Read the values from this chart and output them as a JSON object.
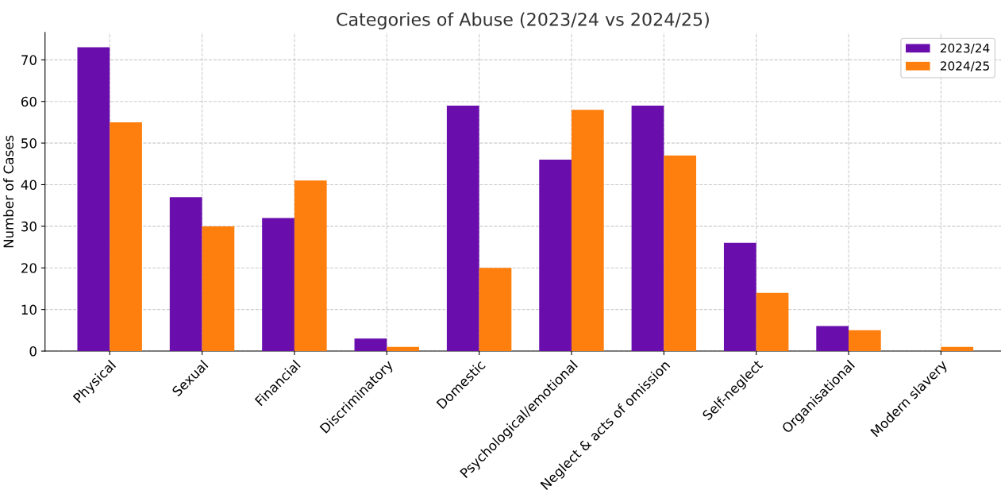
{
  "chart_data": {
    "type": "bar",
    "title": "Categories of Abuse (2023/24 vs 2024/25)",
    "ylabel": "Number of Cases",
    "categories": [
      "Physical",
      "Sexual",
      "Financial",
      "Discriminatory",
      "Domestic",
      "Psychological/emotional",
      "Neglect & acts of omission",
      "Self-neglect",
      "Organisational",
      "Modern slavery"
    ],
    "series": [
      {
        "name": "2023/24",
        "color": "#6a0dad",
        "values": [
          73,
          37,
          32,
          3,
          59,
          46,
          59,
          26,
          6,
          0
        ]
      },
      {
        "name": "2024/25",
        "color": "#ff7f0e",
        "values": [
          55,
          30,
          41,
          1,
          20,
          58,
          47,
          14,
          5,
          1
        ]
      }
    ],
    "ylim": [
      0,
      76.6
    ],
    "yticks": [
      0,
      10,
      20,
      30,
      40,
      50,
      60,
      70
    ],
    "grid": true,
    "legend": "top right"
  }
}
